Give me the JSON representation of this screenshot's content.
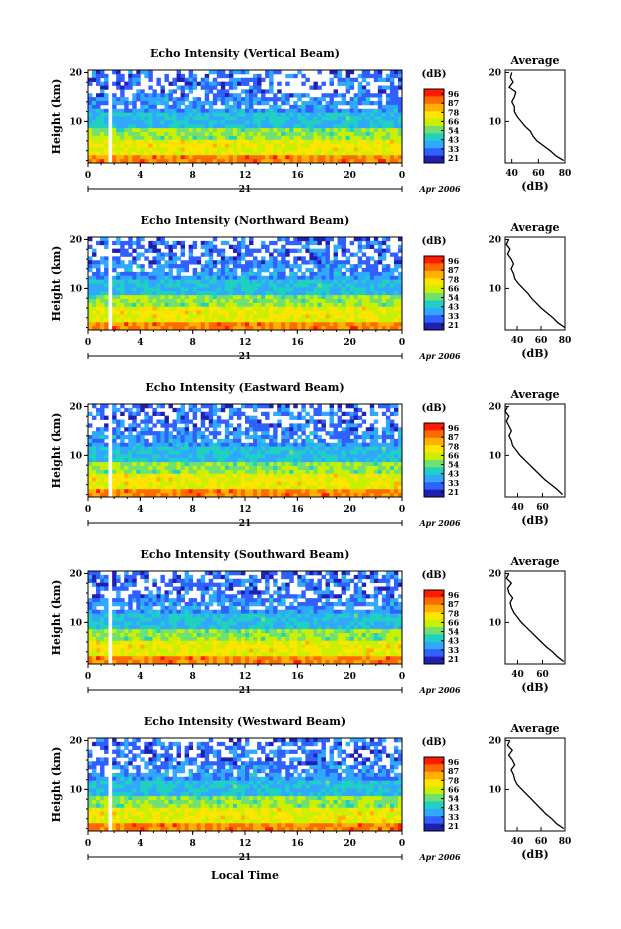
{
  "figure": {
    "x_label": "Local Time",
    "colorbar_unit": "(dB)",
    "colorbar_ticks": [
      "96",
      "87",
      "78",
      "66",
      "54",
      "43",
      "33",
      "21"
    ],
    "colorbar_colors": [
      "#ff1a00",
      "#ff6a00",
      "#ffb000",
      "#ffe400",
      "#c8f000",
      "#70e070",
      "#20d0c0",
      "#30a8ff",
      "#3060ff",
      "#2020b0"
    ],
    "average_title": "Average",
    "average_xlabel": "(dB)",
    "date_label": "Apr 2006",
    "day_label": "21"
  },
  "chart_data": [
    {
      "type": "heatmap",
      "title": "Echo Intensity (Vertical Beam)",
      "ylabel": "Height (km)",
      "x_ticks": [
        "0",
        "4",
        "8",
        "12",
        "16",
        "20",
        "0"
      ],
      "xlim": [
        0,
        24
      ],
      "y_ticks": [
        "10",
        "20"
      ],
      "ylim": [
        1.5,
        20.5
      ],
      "zlim": [
        21,
        96
      ],
      "avg_profile": {
        "title": "Average",
        "x_ticks": [
          "40",
          "60",
          "80"
        ],
        "xlim": [
          35,
          80
        ],
        "y_ticks": [
          "10",
          "20"
        ],
        "height": [
          2,
          3,
          4,
          5,
          6,
          7,
          8,
          9,
          10,
          11,
          12,
          13,
          14,
          15,
          16,
          17,
          18,
          19,
          20
        ],
        "db": [
          79,
          73,
          69,
          64,
          59,
          56,
          54,
          50,
          47,
          44,
          42,
          42,
          40,
          42,
          43,
          38,
          41,
          39,
          40
        ]
      }
    },
    {
      "type": "heatmap",
      "title": "Echo Intensity (Northward Beam)",
      "ylabel": "Height (km)",
      "x_ticks": [
        "0",
        "4",
        "8",
        "12",
        "16",
        "20",
        "0"
      ],
      "xlim": [
        0,
        24
      ],
      "y_ticks": [
        "10",
        "20"
      ],
      "ylim": [
        1.5,
        20.5
      ],
      "zlim": [
        21,
        96
      ],
      "avg_profile": {
        "title": "Average",
        "x_ticks": [
          "40",
          "60",
          "80"
        ],
        "xlim": [
          30,
          80
        ],
        "y_ticks": [
          "10",
          "20"
        ],
        "height": [
          2,
          3,
          4,
          5,
          6,
          7,
          8,
          9,
          10,
          11,
          12,
          13,
          14,
          15,
          16,
          17,
          18,
          19,
          20
        ],
        "db": [
          80,
          74,
          70,
          65,
          60,
          56,
          52,
          49,
          45,
          41,
          38,
          37,
          35,
          37,
          35,
          32,
          34,
          31,
          33
        ]
      }
    },
    {
      "type": "heatmap",
      "title": "Echo Intensity (Eastward Beam)",
      "ylabel": "Height (km)",
      "x_ticks": [
        "0",
        "4",
        "8",
        "12",
        "16",
        "20",
        "0"
      ],
      "xlim": [
        0,
        24
      ],
      "y_ticks": [
        "10",
        "20"
      ],
      "ylim": [
        1.5,
        20.5
      ],
      "zlim": [
        21,
        96
      ],
      "avg_profile": {
        "title": "Average",
        "x_ticks": [
          "40",
          "60"
        ],
        "xlim": [
          30,
          78
        ],
        "y_ticks": [
          "10",
          "20"
        ],
        "height": [
          2,
          3,
          4,
          5,
          6,
          7,
          8,
          9,
          10,
          11,
          12,
          13,
          14,
          15,
          16,
          17,
          18,
          19,
          20
        ],
        "db": [
          76,
          72,
          67,
          62,
          58,
          54,
          50,
          46,
          42,
          39,
          36,
          35,
          33,
          35,
          33,
          31,
          33,
          30,
          32
        ]
      }
    },
    {
      "type": "heatmap",
      "title": "Echo Intensity (Southward Beam)",
      "ylabel": "Height (km)",
      "x_ticks": [
        "0",
        "4",
        "8",
        "12",
        "16",
        "20",
        "0"
      ],
      "xlim": [
        0,
        24
      ],
      "y_ticks": [
        "10",
        "20"
      ],
      "ylim": [
        1.5,
        20.5
      ],
      "zlim": [
        21,
        96
      ],
      "avg_profile": {
        "title": "Average",
        "x_ticks": [
          "40",
          "60"
        ],
        "xlim": [
          30,
          78
        ],
        "y_ticks": [
          "10",
          "20"
        ],
        "height": [
          2,
          3,
          4,
          5,
          6,
          7,
          8,
          9,
          10,
          11,
          12,
          13,
          14,
          15,
          16,
          17,
          18,
          19,
          20
        ],
        "db": [
          77,
          72,
          68,
          63,
          59,
          55,
          51,
          47,
          43,
          40,
          37,
          35,
          34,
          36,
          33,
          32,
          35,
          31,
          33
        ]
      }
    },
    {
      "type": "heatmap",
      "title": "Echo Intensity (Westward Beam)",
      "ylabel": "Height (km)",
      "x_ticks": [
        "0",
        "4",
        "8",
        "12",
        "16",
        "20",
        "0"
      ],
      "xlim": [
        0,
        24
      ],
      "y_ticks": [
        "10",
        "20"
      ],
      "ylim": [
        1.5,
        20.5
      ],
      "zlim": [
        21,
        96
      ],
      "avg_profile": {
        "title": "Average",
        "x_ticks": [
          "40",
          "60",
          "80"
        ],
        "xlim": [
          30,
          80
        ],
        "y_ticks": [
          "10",
          "20"
        ],
        "height": [
          2,
          3,
          4,
          5,
          6,
          7,
          8,
          9,
          10,
          11,
          12,
          13,
          14,
          15,
          16,
          17,
          18,
          19,
          20
        ],
        "db": [
          79,
          73,
          69,
          64,
          60,
          56,
          52,
          48,
          44,
          40,
          38,
          37,
          35,
          38,
          36,
          33,
          36,
          32,
          34
        ]
      }
    }
  ]
}
